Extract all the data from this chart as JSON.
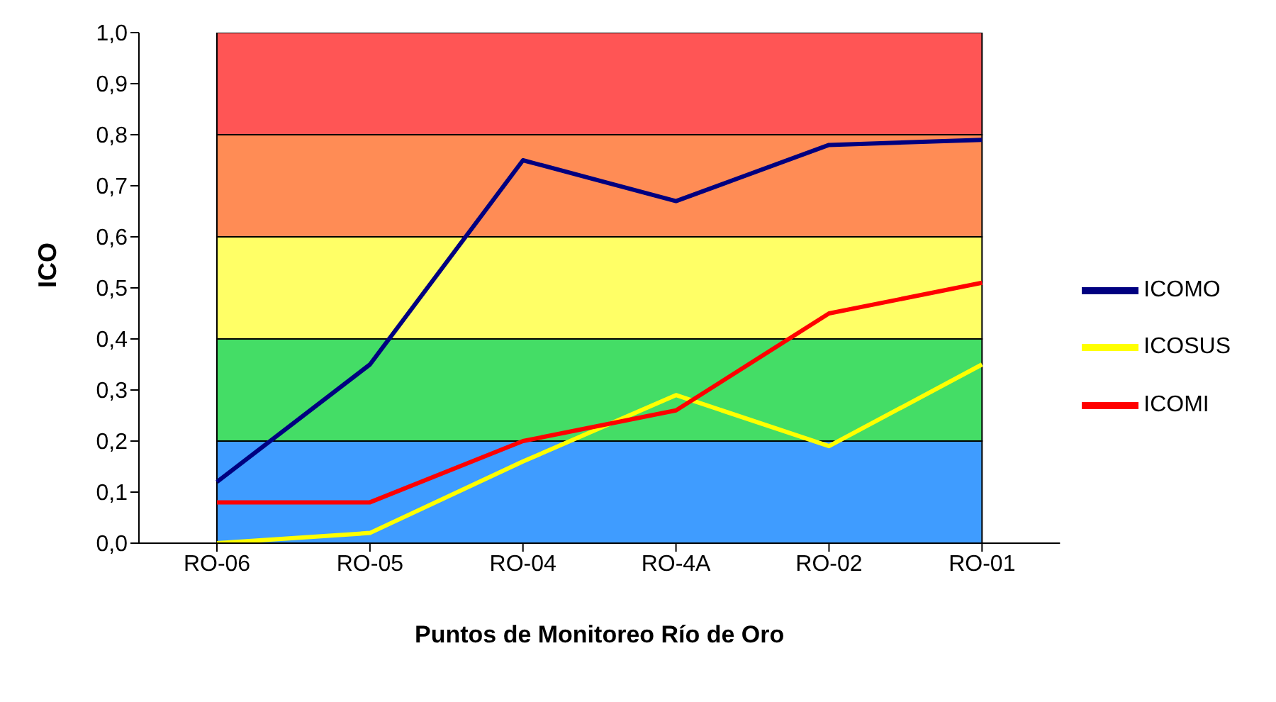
{
  "chart_data": {
    "type": "line",
    "xlabel": "Puntos de Monitoreo Río de Oro",
    "ylabel": "ICO",
    "categories": [
      "RO-06",
      "RO-05",
      "RO-04",
      "RO-4A",
      "RO-02",
      "RO-01"
    ],
    "series": [
      {
        "name": "ICOMO",
        "color": "#000080",
        "values": [
          0.12,
          0.35,
          0.75,
          0.67,
          0.78,
          0.79
        ]
      },
      {
        "name": "ICOSUS",
        "color": "#ffff00",
        "values": [
          0,
          0.02,
          0.16,
          0.29,
          0.19,
          0.35
        ]
      },
      {
        "name": "ICOMI",
        "color": "#ff0000",
        "values": [
          0.08,
          0.08,
          0.2,
          0.26,
          0.45,
          0.51
        ]
      }
    ],
    "ylim": [
      0,
      1
    ],
    "yticks": [
      {
        "value": 0,
        "label": "0,0"
      },
      {
        "value": 0.1,
        "label": "0,1"
      },
      {
        "value": 0.2,
        "label": "0,2"
      },
      {
        "value": 0.3,
        "label": "0,3"
      },
      {
        "value": 0.4,
        "label": "0,4"
      },
      {
        "value": 0.5,
        "label": "0,5"
      },
      {
        "value": 0.6,
        "label": "0,6"
      },
      {
        "value": 0.7,
        "label": "0,7"
      },
      {
        "value": 0.8,
        "label": "0,8"
      },
      {
        "value": 0.9,
        "label": "0,9"
      },
      {
        "value": 1,
        "label": "1,0"
      }
    ],
    "bands": [
      {
        "axis": "y",
        "from": 0,
        "to": 0.2,
        "color": "#3f9cff"
      },
      {
        "axis": "y",
        "from": 0.2,
        "to": 0.4,
        "color": "#44dd66"
      },
      {
        "axis": "y",
        "from": 0.4,
        "to": 0.6,
        "color": "#ffff66"
      },
      {
        "axis": "y",
        "from": 0.6,
        "to": 0.8,
        "color": "#ff8c55"
      },
      {
        "axis": "y",
        "from": 0.8,
        "to": 1,
        "color": "#ff5555"
      }
    ],
    "grid": false,
    "legend": "right",
    "marker": "none",
    "line_style": "solid"
  }
}
